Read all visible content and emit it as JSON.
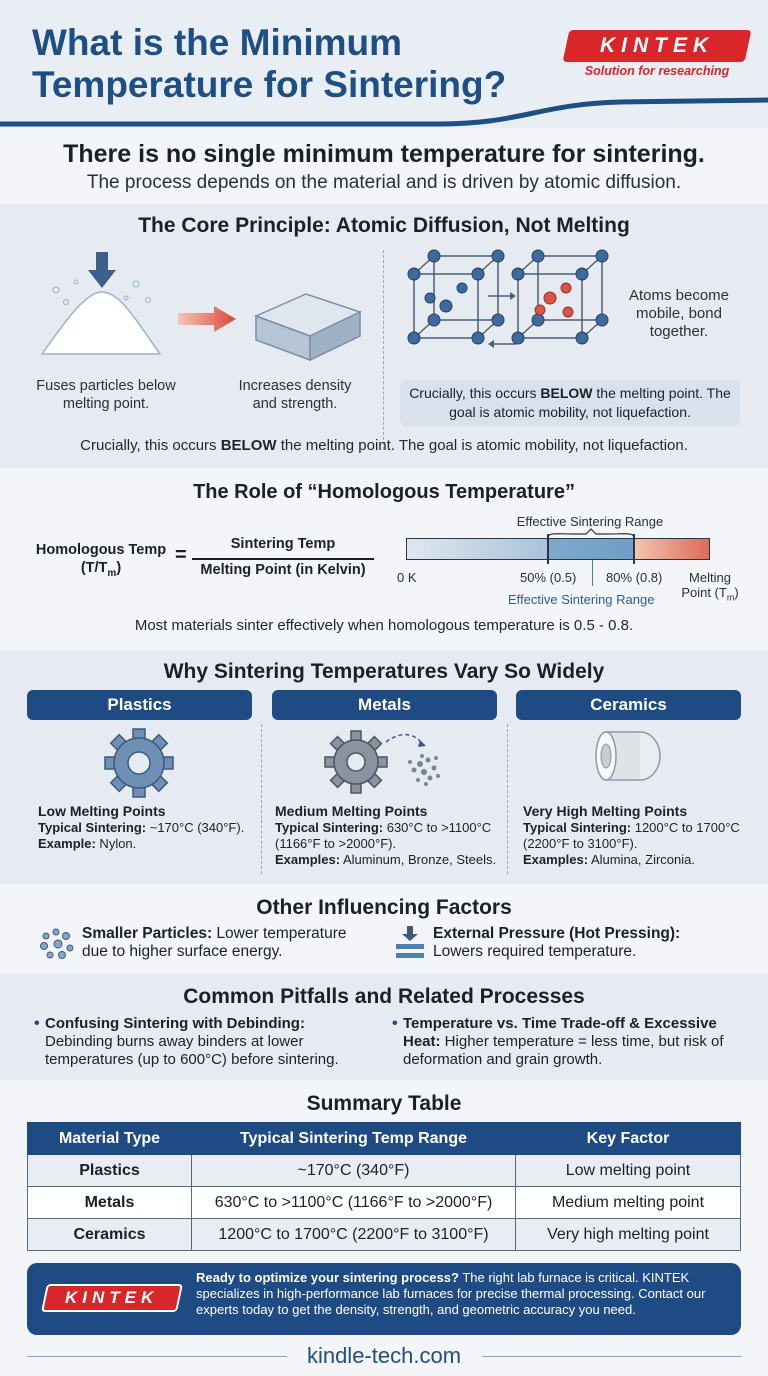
{
  "header": {
    "title": "What is the Minimum Temperature for Sintering?",
    "logo_text": "KINTEK",
    "tagline": "Solution for researching"
  },
  "intro": {
    "heading": "There is no single minimum temperature for sintering.",
    "text": "The process depends on the material and is driven by atomic diffusion."
  },
  "core": {
    "heading": "The Core Principle: Atomic Diffusion, Not Melting",
    "step1": "Fuses particles below melting point.",
    "step2": "Increases density and strength.",
    "atoms_label": "Atoms become mobile, bond together.",
    "callout_pre": "Crucially, this occurs ",
    "callout_bold": "BELOW",
    "callout_post": " the melting point. The goal is atomic mobility, not liquefaction.",
    "note_pre": "Crucially, this occurs ",
    "note_bold": "BELOW",
    "note_post": " the melting point. The goal is atomic mobility, not liquefaction."
  },
  "homologous": {
    "heading": "The Role of “Homologous Temperature”",
    "lhs_line1": "Homologous Temp",
    "lhs_line2": "(T/T",
    "lhs_sub": "m",
    "lhs_close": ")",
    "equals": "=",
    "numerator": "Sintering Temp",
    "denominator": "Melting Point (in Kelvin)",
    "range_top_label": "Effective Sintering Range",
    "range_bottom_label": "Effective Sintering Range",
    "scale_start": "0 K",
    "scale_low": "50% (0.5)",
    "scale_high": "80% (0.8)",
    "scale_end_line1": "Melting",
    "scale_end_line2": "Point (T",
    "scale_end_sub": "m",
    "scale_end_close": ")",
    "range_fractions": [
      0.5,
      0.8
    ],
    "note": "Most materials sinter effectively when homologous temperature is 0.5 - 0.8."
  },
  "vary": {
    "heading": "Why Sintering Temperatures Vary So Widely",
    "cards": [
      {
        "title": "Plastics",
        "melt": "Low Melting Points",
        "typ_label": "Typical Sintering:",
        "typ_value": " ~170°C (340°F).",
        "typ_value2": "",
        "ex_label": "Example:",
        "ex_value": " Nylon.",
        "icon": "gear-icon"
      },
      {
        "title": "Metals",
        "melt": "Medium Melting Points",
        "typ_label": "Typical Sintering:",
        "typ_value": " 630°C to >1100°C",
        "typ_value2": "(1166°F to >2000°F).",
        "ex_label": "Examples:",
        "ex_value": " Aluminum, Bronze, Steels.",
        "icon": "gear-powder-icon"
      },
      {
        "title": "Ceramics",
        "melt": "Very High Melting Points",
        "typ_label": "Typical Sintering:",
        "typ_value": " 1200°C to 1700°C",
        "typ_value2": "(2200°F to 3100°F).",
        "ex_label": "Examples:",
        "ex_value": " Alumina, Zirconia.",
        "icon": "ceramic-bushing-icon"
      }
    ]
  },
  "factors": {
    "heading": "Other Influencing Factors",
    "f1_bold": "Smaller Particles:",
    "f1_text": " Lower temperature",
    "f1_text2": "due to higher surface energy.",
    "f2_bold": "External Pressure (Hot Pressing):",
    "f2_text": "Lowers required temperature."
  },
  "pitfalls": {
    "heading": "Common Pitfalls and Related Processes",
    "p1_bold": "Confusing Sintering with Debinding:",
    "p1_text": "Debinding burns away binders at lower temperatures (up to 600°C) before sintering.",
    "p2_bold": "Temperature vs. Time Trade-off & Excessive Heat:",
    "p2_text": " Higher temperature = less time, but risk of deformation and grain growth."
  },
  "summary": {
    "heading": "Summary Table",
    "columns": [
      "Material Type",
      "Typical Sintering Temp Range",
      "Key Factor"
    ],
    "rows": [
      [
        "Plastics",
        "~170°C (340°F)",
        "Low melting point"
      ],
      [
        "Metals",
        "630°C to >1100°C (1166°F to >2000°F)",
        "Medium melting point"
      ],
      [
        "Ceramics",
        "1200°C to 1700°C (2200°F to 3100°F)",
        "Very high melting point"
      ]
    ]
  },
  "footer": {
    "logo_text": "KINTEK",
    "cta_bold": "Ready to optimize your sintering process?",
    "cta_text": " The right lab furnace is critical. KINTEK specializes in high-performance lab furnaces for precise thermal processing. Contact our experts today to get the density, strength, and geometric accuracy you need.",
    "site": "kindle-tech.com"
  },
  "colors": {
    "navy": "#1f4b85",
    "title_blue": "#1d4f85",
    "brand_red": "#d9262a",
    "band": "#e6ebf2"
  }
}
